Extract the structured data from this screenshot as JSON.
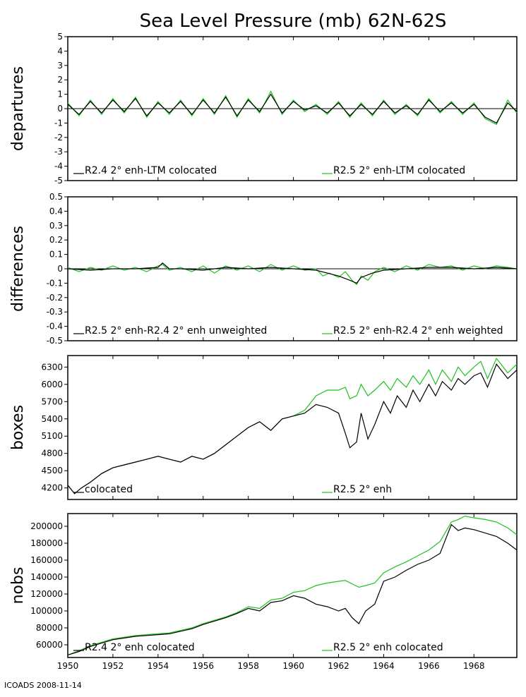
{
  "title": "Sea Level Pressure (mb) 62N-62S",
  "footer": "ICOADS 2008-11-14",
  "colors": {
    "black_series": "#000000",
    "green_series": "#1fc21f"
  },
  "chart_data": [
    {
      "id": "departures",
      "type": "line",
      "ylabel": "departures",
      "ylim": [
        -5,
        5
      ],
      "yticks": [
        "-5",
        "-4",
        "-3",
        "-2",
        "-1",
        "0",
        "1",
        "2",
        "3",
        "4",
        "5"
      ],
      "legend_left": "R2.4 2° enh-LTM colocated",
      "legend_right": "R2.5 2° enh-LTM colocated",
      "baseline": 0,
      "series": [
        {
          "name": "R2.4 2° enh-LTM colocated",
          "color": "#000000",
          "x": [
            1950.0,
            1950.5,
            1951.0,
            1951.5,
            1952.0,
            1952.5,
            1953.0,
            1953.5,
            1954.0,
            1954.5,
            1955.0,
            1955.5,
            1956.0,
            1956.5,
            1957.0,
            1957.5,
            1958.0,
            1958.5,
            1959.0,
            1959.5,
            1960.0,
            1960.5,
            1961.0,
            1961.5,
            1962.0,
            1962.5,
            1963.0,
            1963.5,
            1964.0,
            1964.5,
            1965.0,
            1965.5,
            1966.0,
            1966.5,
            1967.0,
            1967.5,
            1968.0,
            1968.5,
            1969.0,
            1969.5,
            1969.9
          ],
          "y": [
            0.3,
            -0.4,
            0.5,
            -0.3,
            0.6,
            -0.2,
            0.7,
            -0.5,
            0.4,
            -0.3,
            0.5,
            -0.4,
            0.6,
            -0.3,
            0.8,
            -0.5,
            0.6,
            -0.2,
            1.0,
            -0.3,
            0.5,
            -0.1,
            0.2,
            -0.3,
            0.4,
            -0.5,
            0.3,
            -0.4,
            0.5,
            -0.3,
            0.2,
            -0.4,
            0.6,
            -0.2,
            0.4,
            -0.3,
            0.3,
            -0.6,
            -1.0,
            0.4,
            -0.2
          ]
        },
        {
          "name": "R2.5 2° enh-LTM colocated",
          "color": "#1fc21f",
          "x": [
            1950.0,
            1950.5,
            1951.0,
            1951.5,
            1952.0,
            1952.5,
            1953.0,
            1953.5,
            1954.0,
            1954.5,
            1955.0,
            1955.5,
            1956.0,
            1956.5,
            1957.0,
            1957.5,
            1958.0,
            1958.5,
            1959.0,
            1959.5,
            1960.0,
            1960.5,
            1961.0,
            1961.5,
            1962.0,
            1962.5,
            1963.0,
            1963.5,
            1964.0,
            1964.5,
            1965.0,
            1965.5,
            1966.0,
            1966.5,
            1967.0,
            1967.5,
            1968.0,
            1968.5,
            1969.0,
            1969.5,
            1969.9
          ],
          "y": [
            0.4,
            -0.5,
            0.6,
            -0.4,
            0.7,
            -0.3,
            0.8,
            -0.6,
            0.5,
            -0.4,
            0.6,
            -0.5,
            0.7,
            -0.4,
            0.9,
            -0.6,
            0.7,
            -0.3,
            1.2,
            -0.4,
            0.6,
            -0.2,
            0.3,
            -0.4,
            0.5,
            -0.6,
            0.4,
            -0.5,
            0.6,
            -0.4,
            0.3,
            -0.5,
            0.7,
            -0.3,
            0.5,
            -0.4,
            0.4,
            -0.7,
            -1.1,
            0.6,
            -0.3
          ]
        }
      ]
    },
    {
      "id": "differences",
      "type": "line",
      "ylabel": "differences",
      "ylim": [
        -0.5,
        0.5
      ],
      "yticks": [
        "-0.5",
        "-0.4",
        "-0.3",
        "-0.2",
        "-0.1",
        "0",
        "0.1",
        "0.2",
        "0.3",
        "0.4",
        "0.5"
      ],
      "legend_left": "R2.5 2° enh-R2.4 2° enh unweighted",
      "legend_right": "R2.5 2° enh-R2.4 2° enh weighted",
      "baseline": 0,
      "series": [
        {
          "name": "R2.5 2° enh-R2.4 2° enh unweighted",
          "color": "#000000",
          "x": [
            1950.0,
            1951.0,
            1952.0,
            1953.0,
            1954.0,
            1954.2,
            1954.5,
            1955.0,
            1956.0,
            1957.0,
            1958.0,
            1959.0,
            1960.0,
            1961.0,
            1961.5,
            1962.0,
            1962.5,
            1962.8,
            1963.0,
            1963.5,
            1964.0,
            1965.0,
            1966.0,
            1967.0,
            1968.0,
            1969.0,
            1969.9
          ],
          "y": [
            0.0,
            -0.01,
            0.0,
            0.0,
            0.01,
            0.04,
            0.0,
            0.0,
            -0.01,
            0.01,
            0.0,
            0.01,
            0.0,
            -0.01,
            -0.03,
            -0.05,
            -0.08,
            -0.1,
            -0.06,
            -0.03,
            -0.01,
            0.0,
            0.01,
            0.01,
            0.0,
            0.01,
            0.0
          ]
        },
        {
          "name": "R2.5 2° enh-R2.4 2° enh weighted",
          "color": "#1fc21f",
          "x": [
            1950.0,
            1950.5,
            1951.0,
            1951.5,
            1952.0,
            1952.5,
            1953.0,
            1953.5,
            1954.0,
            1954.2,
            1954.5,
            1955.0,
            1955.5,
            1956.0,
            1956.5,
            1957.0,
            1957.5,
            1958.0,
            1958.5,
            1959.0,
            1959.5,
            1960.0,
            1960.5,
            1961.0,
            1961.3,
            1961.6,
            1962.0,
            1962.3,
            1962.6,
            1962.8,
            1963.0,
            1963.3,
            1963.6,
            1964.0,
            1964.5,
            1965.0,
            1965.5,
            1966.0,
            1966.5,
            1967.0,
            1967.5,
            1968.0,
            1968.5,
            1969.0,
            1969.5,
            1969.9
          ],
          "y": [
            0.01,
            -0.02,
            0.01,
            -0.01,
            0.02,
            -0.01,
            0.01,
            -0.02,
            0.02,
            0.03,
            -0.01,
            0.01,
            -0.02,
            0.02,
            -0.03,
            0.02,
            -0.01,
            0.02,
            -0.02,
            0.03,
            -0.01,
            0.02,
            -0.01,
            0.0,
            -0.05,
            -0.03,
            -0.06,
            -0.02,
            -0.08,
            -0.11,
            -0.05,
            -0.08,
            -0.02,
            0.01,
            -0.02,
            0.02,
            -0.01,
            0.03,
            0.01,
            0.02,
            -0.01,
            0.02,
            0.0,
            0.02,
            0.01,
            0.0
          ]
        }
      ]
    },
    {
      "id": "boxes",
      "type": "line",
      "ylabel": "boxes",
      "ylim": [
        4000,
        6500
      ],
      "yticks": [
        "4200",
        "4500",
        "4800",
        "5100",
        "5400",
        "5700",
        "6000",
        "6300"
      ],
      "ytick_values": [
        4200,
        4500,
        4800,
        5100,
        5400,
        5700,
        6000,
        6300
      ],
      "legend_left": "colocated",
      "legend_right": "R2.5 2° enh",
      "series": [
        {
          "name": "colocated",
          "color": "#000000",
          "x": [
            1950.0,
            1950.3,
            1950.6,
            1951.0,
            1951.5,
            1952.0,
            1952.5,
            1953.0,
            1953.5,
            1954.0,
            1954.5,
            1955.0,
            1955.5,
            1956.0,
            1956.5,
            1957.0,
            1957.5,
            1958.0,
            1958.5,
            1959.0,
            1959.5,
            1960.0,
            1960.5,
            1961.0,
            1961.5,
            1962.0,
            1962.3,
            1962.5,
            1962.8,
            1963.0,
            1963.3,
            1963.6,
            1964.0,
            1964.3,
            1964.6,
            1965.0,
            1965.3,
            1965.6,
            1966.0,
            1966.3,
            1966.6,
            1967.0,
            1967.3,
            1967.6,
            1968.0,
            1968.3,
            1968.6,
            1969.0,
            1969.5,
            1969.9
          ],
          "y": [
            4250,
            4100,
            4200,
            4300,
            4450,
            4550,
            4600,
            4650,
            4700,
            4750,
            4700,
            4650,
            4750,
            4700,
            4800,
            4950,
            5100,
            5250,
            5350,
            5200,
            5400,
            5450,
            5500,
            5650,
            5600,
            5500,
            5150,
            4900,
            5000,
            5500,
            5050,
            5300,
            5700,
            5500,
            5800,
            5600,
            5900,
            5700,
            6000,
            5800,
            6050,
            5900,
            6100,
            6000,
            6150,
            6200,
            5950,
            6350,
            6100,
            6250
          ]
        },
        {
          "name": "R2.5 2° enh",
          "color": "#1fc21f",
          "x": [
            1950.0,
            1950.3,
            1950.6,
            1951.0,
            1951.5,
            1952.0,
            1952.5,
            1953.0,
            1953.5,
            1954.0,
            1954.5,
            1955.0,
            1955.5,
            1956.0,
            1956.5,
            1957.0,
            1957.5,
            1958.0,
            1958.5,
            1959.0,
            1959.5,
            1960.0,
            1960.5,
            1961.0,
            1961.5,
            1962.0,
            1962.3,
            1962.5,
            1962.8,
            1963.0,
            1963.3,
            1963.6,
            1964.0,
            1964.3,
            1964.6,
            1965.0,
            1965.3,
            1965.6,
            1966.0,
            1966.3,
            1966.6,
            1967.0,
            1967.3,
            1967.6,
            1968.0,
            1968.3,
            1968.6,
            1969.0,
            1969.5,
            1969.9
          ],
          "y": [
            4250,
            4100,
            4200,
            4300,
            4450,
            4550,
            4600,
            4650,
            4700,
            4750,
            4700,
            4650,
            4750,
            4700,
            4800,
            4950,
            5100,
            5250,
            5350,
            5200,
            5400,
            5450,
            5550,
            5800,
            5900,
            5900,
            5950,
            5750,
            5800,
            6000,
            5800,
            5900,
            6050,
            5900,
            6100,
            5950,
            6150,
            6000,
            6250,
            6000,
            6250,
            6050,
            6300,
            6150,
            6300,
            6400,
            6100,
            6450,
            6200,
            6350
          ]
        }
      ]
    },
    {
      "id": "nobs",
      "type": "line",
      "ylabel": "nobs",
      "ylim": [
        45000,
        215000
      ],
      "yticks": [
        "60000",
        "80000",
        "100000",
        "120000",
        "140000",
        "160000",
        "180000",
        "200000"
      ],
      "ytick_values": [
        60000,
        80000,
        100000,
        120000,
        140000,
        160000,
        180000,
        200000
      ],
      "legend_left": "R2.4 2° enh colocated",
      "legend_right": "R2.5 2° enh colocated",
      "series": [
        {
          "name": "R2.4 2° enh colocated",
          "color": "#000000",
          "x": [
            1950.0,
            1950.5,
            1951.0,
            1951.5,
            1952.0,
            1952.5,
            1953.0,
            1953.5,
            1954.0,
            1954.5,
            1955.0,
            1955.5,
            1956.0,
            1956.5,
            1957.0,
            1957.5,
            1958.0,
            1958.5,
            1959.0,
            1959.5,
            1960.0,
            1960.5,
            1961.0,
            1961.5,
            1962.0,
            1962.3,
            1962.6,
            1962.9,
            1963.2,
            1963.6,
            1964.0,
            1964.5,
            1965.0,
            1965.5,
            1966.0,
            1966.5,
            1967.0,
            1967.3,
            1967.6,
            1968.0,
            1968.5,
            1969.0,
            1969.5,
            1969.9
          ],
          "y": [
            48000,
            52000,
            58000,
            62000,
            66000,
            68000,
            70000,
            71000,
            72000,
            73000,
            76000,
            79000,
            84000,
            88000,
            92000,
            97000,
            103000,
            100000,
            110000,
            112000,
            118000,
            115000,
            108000,
            105000,
            100000,
            103000,
            92000,
            85000,
            100000,
            108000,
            135000,
            140000,
            148000,
            155000,
            160000,
            168000,
            202000,
            195000,
            198000,
            196000,
            192000,
            188000,
            180000,
            172000
          ]
        },
        {
          "name": "R2.5 2° enh colocated",
          "color": "#1fc21f",
          "x": [
            1950.0,
            1950.5,
            1951.0,
            1951.5,
            1952.0,
            1952.5,
            1953.0,
            1953.5,
            1954.0,
            1954.5,
            1955.0,
            1955.5,
            1956.0,
            1956.5,
            1957.0,
            1957.5,
            1958.0,
            1958.5,
            1959.0,
            1959.5,
            1960.0,
            1960.5,
            1961.0,
            1961.5,
            1962.0,
            1962.3,
            1962.6,
            1962.9,
            1963.2,
            1963.6,
            1964.0,
            1964.5,
            1965.0,
            1965.5,
            1966.0,
            1966.5,
            1967.0,
            1967.3,
            1967.6,
            1968.0,
            1968.5,
            1969.0,
            1969.5,
            1969.9
          ],
          "y": [
            48000,
            53000,
            59000,
            63000,
            67000,
            69000,
            71000,
            72000,
            73000,
            74000,
            77000,
            80000,
            85000,
            89000,
            93000,
            98000,
            105000,
            103000,
            113000,
            115000,
            122000,
            124000,
            130000,
            133000,
            135000,
            136000,
            132000,
            128000,
            130000,
            133000,
            145000,
            152000,
            158000,
            165000,
            172000,
            182000,
            205000,
            208000,
            212000,
            210000,
            208000,
            205000,
            198000,
            190000
          ]
        }
      ]
    }
  ],
  "xaxis": {
    "xlim": [
      1950,
      1969.9
    ],
    "ticks": [
      1950,
      1952,
      1954,
      1956,
      1958,
      1960,
      1962,
      1964,
      1966,
      1968
    ],
    "tick_labels": [
      "1950",
      "1952",
      "1954",
      "1956",
      "1958",
      "1960",
      "1962",
      "1964",
      "1966",
      "1968"
    ]
  }
}
